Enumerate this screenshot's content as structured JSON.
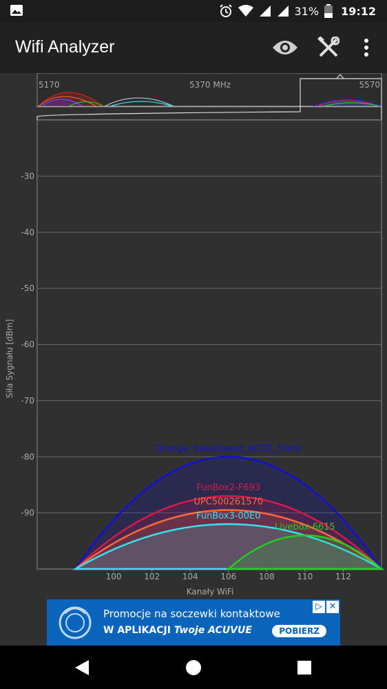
{
  "status_bar": {
    "battery": "31%",
    "time": "19:12",
    "icons": [
      "image-icon",
      "alarm-icon",
      "wifi-icon",
      "signal-icon",
      "signal-icon",
      "battery-icon"
    ]
  },
  "toolbar": {
    "title": "Wifi Analyzer",
    "icons": [
      "eye-icon",
      "tools-icon",
      "more-vert-icon"
    ]
  },
  "navigator": {
    "labels": [
      "5170",
      "5370 MHz",
      "5570"
    ]
  },
  "chart_data": {
    "type": "area",
    "ylabel": "Siła Sygnału [dBm]",
    "xlabel": "Kanały WiFi",
    "x_ticks": [
      100,
      102,
      104,
      106,
      108,
      110,
      112
    ],
    "y_ticks": [
      -30,
      -40,
      -50,
      -60,
      -70,
      -80,
      -90
    ],
    "ylim": [
      -100,
      -20
    ],
    "xlim": [
      96,
      114
    ],
    "grid": true,
    "series": [
      {
        "name": "Orange_Swiatlowod_ACD2_5GHz",
        "center": 106,
        "start": 98,
        "end": 114,
        "level": -80,
        "color": "#1010d8"
      },
      {
        "name": "FunBox2-F693",
        "center": 106,
        "start": 98,
        "end": 114,
        "level": -87,
        "color": "#d8184a"
      },
      {
        "name": "UPC500261570",
        "center": 106,
        "start": 98,
        "end": 114,
        "level": -89.5,
        "color": "#ff6a3c"
      },
      {
        "name": "FunBox3-00E0",
        "center": 106,
        "start": 98,
        "end": 114,
        "level": -92,
        "color": "#38e0f0"
      },
      {
        "name": "Livebox-6615",
        "center": 110,
        "start": 106,
        "end": 114,
        "level": -94,
        "color": "#22cc22"
      }
    ]
  },
  "ad": {
    "line1": "Promocje na soczewki kontaktowe",
    "line2_prefix": "W APLIKACJI ",
    "line2_brand": "Twoje ACUVUE",
    "button": "POBIERZ",
    "close_icons": [
      "adchoices-icon",
      "close-icon"
    ]
  },
  "navbar": {
    "icons": [
      "back-icon",
      "home-icon",
      "recents-icon"
    ]
  }
}
